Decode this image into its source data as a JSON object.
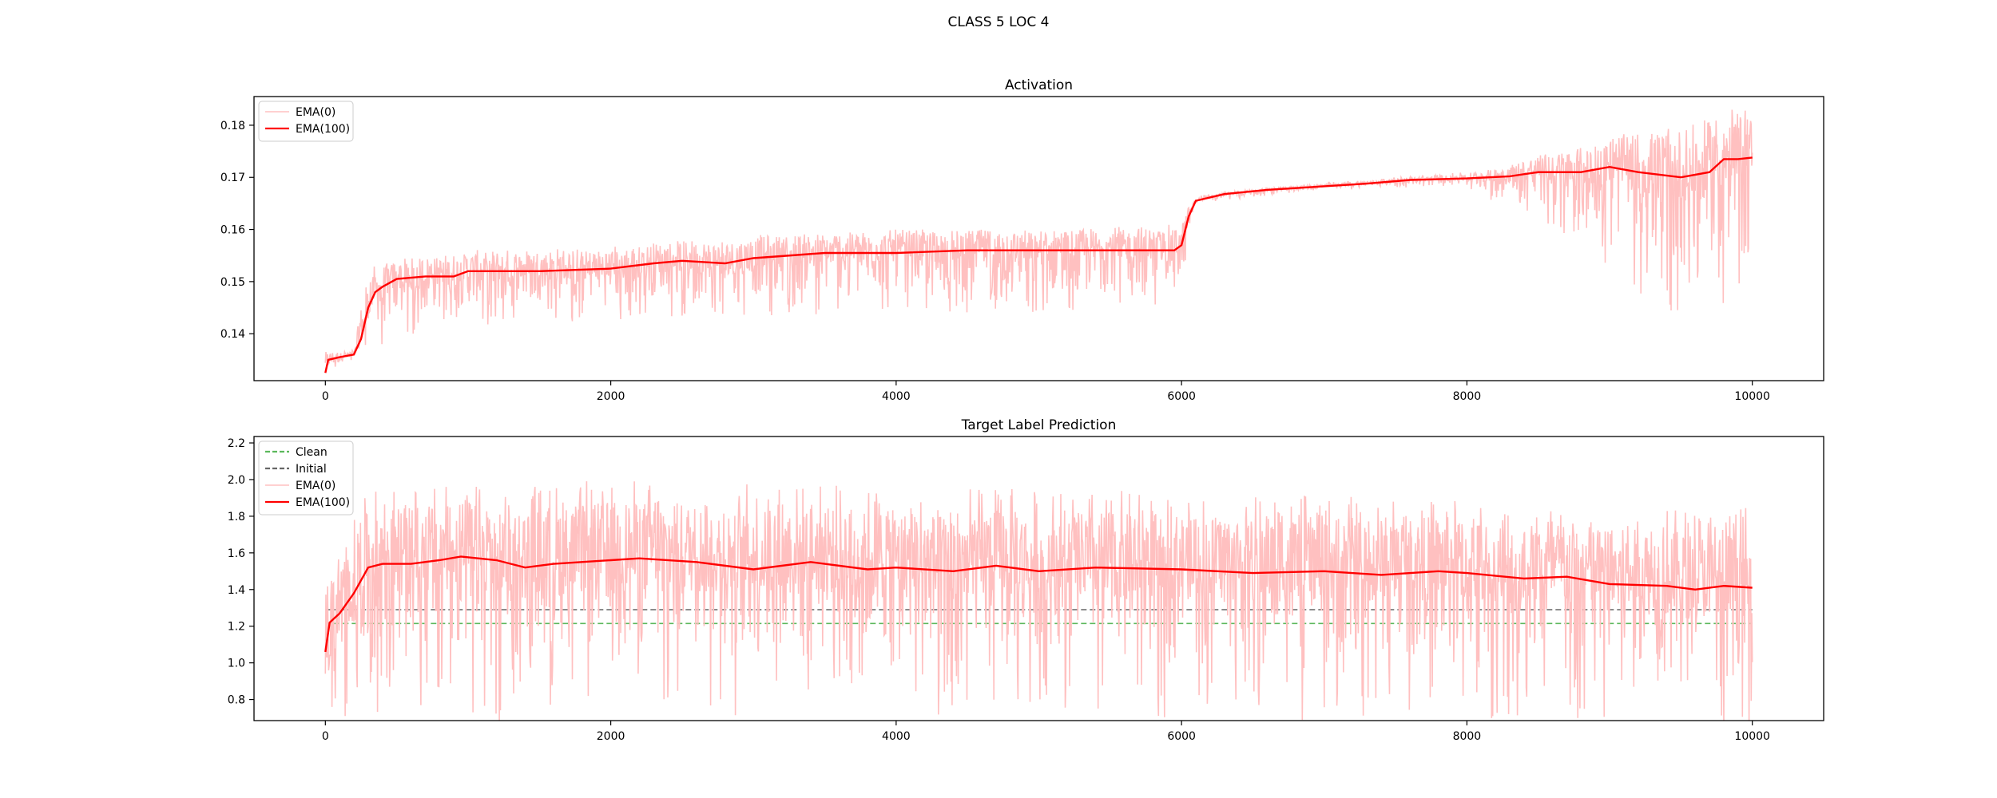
{
  "figure": {
    "suptitle": "CLASS 5 LOC 4"
  },
  "chart_data": [
    {
      "type": "line",
      "title": "Activation",
      "xlabel": "",
      "ylabel": "",
      "xlim": [
        -500,
        10500
      ],
      "ylim": [
        0.131,
        0.1855
      ],
      "xticks": [
        0,
        2000,
        4000,
        6000,
        8000,
        10000
      ],
      "xtick_labels": [
        "0",
        "2000",
        "4000",
        "6000",
        "8000",
        "10000"
      ],
      "yticks": [
        0.14,
        0.15,
        0.16,
        0.17,
        0.18
      ],
      "ytick_labels": [
        "0.14",
        "0.15",
        "0.16",
        "0.17",
        "0.18"
      ],
      "grid": false,
      "legend_placement": "upper-left",
      "series": [
        {
          "name": "EMA(0)",
          "color": "#ffc0c0",
          "style": "solid",
          "description_kind": "noisy raw activation",
          "noise_envelope": [
            {
              "x": 0,
              "lo": 0.1335,
              "hi": 0.1365
            },
            {
              "x": 200,
              "lo": 0.1355,
              "hi": 0.137
            },
            {
              "x": 300,
              "lo": 0.142,
              "hi": 0.153
            },
            {
              "x": 1000,
              "lo": 0.146,
              "hi": 0.156
            },
            {
              "x": 2000,
              "lo": 0.147,
              "hi": 0.157
            },
            {
              "x": 3000,
              "lo": 0.148,
              "hi": 0.159
            },
            {
              "x": 4000,
              "lo": 0.149,
              "hi": 0.16
            },
            {
              "x": 5000,
              "lo": 0.149,
              "hi": 0.16
            },
            {
              "x": 5990,
              "lo": 0.15,
              "hi": 0.161
            },
            {
              "x": 6100,
              "lo": 0.1655,
              "hi": 0.1665
            },
            {
              "x": 7000,
              "lo": 0.168,
              "hi": 0.169
            },
            {
              "x": 8000,
              "lo": 0.169,
              "hi": 0.171
            },
            {
              "x": 8500,
              "lo": 0.165,
              "hi": 0.174
            },
            {
              "x": 9000,
              "lo": 0.16,
              "hi": 0.177
            },
            {
              "x": 9500,
              "lo": 0.153,
              "hi": 0.18
            },
            {
              "x": 10000,
              "lo": 0.155,
              "hi": 0.183
            }
          ]
        },
        {
          "name": "EMA(100)",
          "color": "#ff0000",
          "style": "solid",
          "x": [
            0,
            20,
            100,
            200,
            250,
            300,
            350,
            400,
            500,
            700,
            900,
            1000,
            1500,
            2000,
            2300,
            2500,
            2800,
            3000,
            3500,
            4000,
            4500,
            5000,
            5500,
            5950,
            6000,
            6050,
            6100,
            6300,
            6600,
            7000,
            7300,
            7600,
            8000,
            8300,
            8500,
            8800,
            9000,
            9200,
            9500,
            9700,
            9800,
            9900,
            10000
          ],
          "y": [
            0.1325,
            0.135,
            0.1355,
            0.136,
            0.139,
            0.145,
            0.148,
            0.149,
            0.1505,
            0.151,
            0.151,
            0.152,
            0.152,
            0.1525,
            0.1535,
            0.154,
            0.1535,
            0.1545,
            0.1555,
            0.1555,
            0.156,
            0.156,
            0.156,
            0.156,
            0.157,
            0.1625,
            0.1655,
            0.1668,
            0.1676,
            0.1683,
            0.1688,
            0.1695,
            0.1698,
            0.1702,
            0.171,
            0.171,
            0.172,
            0.171,
            0.17,
            0.171,
            0.1735,
            0.1735,
            0.1738
          ]
        }
      ]
    },
    {
      "type": "line",
      "title": "Target Label Prediction",
      "xlabel": "",
      "ylabel": "",
      "xlim": [
        -500,
        10500
      ],
      "ylim": [
        0.685,
        2.235
      ],
      "xticks": [
        0,
        2000,
        4000,
        6000,
        8000,
        10000
      ],
      "xtick_labels": [
        "0",
        "2000",
        "4000",
        "6000",
        "8000",
        "10000"
      ],
      "yticks": [
        0.8,
        1.0,
        1.2,
        1.4,
        1.6,
        1.8,
        2.0,
        2.2
      ],
      "ytick_labels": [
        "0.8",
        "1.0",
        "1.2",
        "1.4",
        "1.6",
        "1.8",
        "2.0",
        "2.2"
      ],
      "grid": false,
      "legend_placement": "upper-left",
      "series": [
        {
          "name": "Clean",
          "color": "#5cb85c",
          "style": "dashed",
          "x": [
            0,
            10000
          ],
          "y": [
            1.215,
            1.215
          ]
        },
        {
          "name": "Initial",
          "color": "#666666",
          "style": "dashed",
          "x": [
            0,
            10000
          ],
          "y": [
            1.29,
            1.29
          ]
        },
        {
          "name": "EMA(0)",
          "color": "#ffc0c0",
          "style": "solid",
          "description_kind": "noisy raw prediction",
          "noise_envelope": [
            {
              "x": 0,
              "lo": 0.9,
              "hi": 1.45
            },
            {
              "x": 300,
              "lo": 1.05,
              "hi": 1.95
            },
            {
              "x": 2000,
              "lo": 1.1,
              "hi": 2.0
            },
            {
              "x": 5000,
              "lo": 1.1,
              "hi": 1.95
            },
            {
              "x": 8000,
              "lo": 1.05,
              "hi": 1.9
            },
            {
              "x": 10000,
              "lo": 1.0,
              "hi": 1.85
            }
          ]
        },
        {
          "name": "EMA(100)",
          "color": "#ff0000",
          "style": "solid",
          "x": [
            0,
            30,
            100,
            200,
            300,
            400,
            600,
            800,
            950,
            1200,
            1400,
            1600,
            2000,
            2200,
            2600,
            3000,
            3400,
            3800,
            4000,
            4400,
            4700,
            5000,
            5400,
            6000,
            6500,
            7000,
            7400,
            7800,
            8000,
            8400,
            8700,
            9000,
            9400,
            9600,
            9800,
            10000
          ],
          "y": [
            1.06,
            1.22,
            1.27,
            1.38,
            1.52,
            1.54,
            1.54,
            1.56,
            1.58,
            1.56,
            1.52,
            1.54,
            1.56,
            1.57,
            1.55,
            1.51,
            1.55,
            1.51,
            1.52,
            1.5,
            1.53,
            1.5,
            1.52,
            1.51,
            1.49,
            1.5,
            1.48,
            1.5,
            1.49,
            1.46,
            1.47,
            1.43,
            1.42,
            1.4,
            1.42,
            1.41
          ]
        }
      ]
    }
  ]
}
